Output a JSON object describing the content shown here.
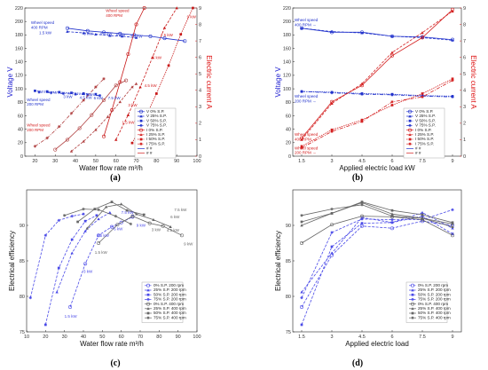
{
  "panels": [
    "(a)",
    "(b)",
    "(c)",
    "(d)"
  ],
  "chart_data": [
    {
      "id": "a",
      "type": "line",
      "xlabel": "Water flow rate m³/h",
      "ylabel": "Voltage V",
      "y2label": "Electric current A",
      "xlim": [
        15,
        100
      ],
      "xticks": [
        20,
        30,
        40,
        50,
        60,
        70,
        80,
        90,
        100
      ],
      "ylim": [
        0,
        220
      ],
      "yticks": [
        0,
        20,
        40,
        60,
        80,
        100,
        120,
        140,
        160,
        180,
        200,
        220
      ],
      "y2lim": [
        0,
        9
      ],
      "y2ticks": [
        0,
        1,
        2,
        3,
        4,
        5,
        6,
        7,
        8,
        9
      ],
      "annotations": {
        "ws400": [
          "Wheel speed",
          "400 RPM"
        ],
        "ws200": [
          "Wheel speed",
          "200 RPM"
        ],
        "rs400": [
          "Wheel speed",
          "400 RPM"
        ],
        "rs200": [
          "Wheel speed",
          "200 RPM"
        ]
      },
      "load_labels_hi": [
        "1.5 kW",
        "3 kW",
        "4.5 kW",
        "6 kW",
        "7.5 kW"
      ],
      "load_labels_lo": [
        "3 kW",
        "4.5 kW",
        "6 kW",
        "7.5 kW"
      ],
      "current_labels": [
        "9 kW",
        "7.5 kW",
        "6 kW",
        "4.5 kW",
        "3 kW",
        "1.5 kW"
      ],
      "voltage_series": [
        {
          "group": "400",
          "x": [
            36,
            46,
            54,
            62,
            69,
            77,
            84,
            94
          ],
          "y": [
            190,
            186,
            184,
            182,
            180,
            178,
            175,
            171
          ]
        },
        {
          "group": "400",
          "x": [
            36,
            44,
            50,
            57,
            63,
            70
          ],
          "y": [
            185,
            183,
            181,
            179,
            178,
            176
          ]
        },
        {
          "group": "200",
          "x": [
            20,
            26,
            32,
            38,
            44,
            50
          ],
          "y": [
            97,
            96,
            95,
            94,
            93,
            92
          ]
        },
        {
          "group": "200",
          "x": [
            22,
            28,
            34,
            40,
            46,
            52
          ],
          "y": [
            95,
            94,
            93,
            92,
            91,
            90
          ]
        }
      ],
      "current_series": [
        {
          "group": "400",
          "x": [
            54,
            58,
            62,
            66,
            70,
            74
          ],
          "y": [
            1.2,
            2.8,
            4.5,
            6.2,
            8.0,
            9.0
          ]
        },
        {
          "group": "400",
          "x": [
            60,
            66,
            72,
            78,
            84,
            90
          ],
          "y": [
            1.0,
            2.5,
            4.2,
            6.0,
            7.8,
            9.0
          ]
        },
        {
          "group": "400",
          "x": [
            68,
            74,
            80,
            86,
            92,
            98
          ],
          "y": [
            0.8,
            2.2,
            3.8,
            5.5,
            7.4,
            9.0
          ]
        },
        {
          "group": "200",
          "x": [
            20,
            26,
            32,
            38,
            44,
            50,
            54
          ],
          "y": [
            0.6,
            1.1,
            1.8,
            2.6,
            3.4,
            4.2,
            4.7
          ]
        },
        {
          "group": "200",
          "x": [
            30,
            36,
            42,
            48,
            54,
            60,
            65
          ],
          "y": [
            0.4,
            1.0,
            1.7,
            2.5,
            3.4,
            4.3,
            4.6
          ]
        },
        {
          "group": "200",
          "x": [
            38,
            44,
            50,
            56,
            62,
            68,
            70
          ],
          "y": [
            0.3,
            0.9,
            1.6,
            2.4,
            3.3,
            4.2,
            4.4
          ]
        }
      ],
      "legend": [
        "V 0% S.P.",
        "V 25% S.P.",
        "V 50% S.P.",
        "V 75% S.P.",
        "I 0% S.P.",
        "I 25% S.P.",
        "I 50% S.P.",
        "I 75% S.P."
      ],
      "legend_extra": [
        "# #",
        "# #"
      ]
    },
    {
      "id": "b",
      "type": "line",
      "xlabel": "Applied electric load kW",
      "ylabel": "Voltage V",
      "y2label": "Electric current A",
      "categories": [
        "1.5",
        "3",
        "4.5",
        "6",
        "7.5",
        "9"
      ],
      "ylim": [
        0,
        220
      ],
      "yticks": [
        0,
        20,
        40,
        60,
        80,
        100,
        120,
        140,
        160,
        180,
        200,
        220
      ],
      "y2lim": [
        0,
        9
      ],
      "y2ticks": [
        0,
        1,
        2,
        3,
        4,
        5,
        6,
        7,
        8,
        9
      ],
      "annotations": {
        "ws400": [
          "Wheel speed",
          "400 RPM →"
        ],
        "ws200": [
          "Wheel speed",
          "200 RPM →"
        ],
        "rs400": [
          "Wheel speed",
          "400 RPM →"
        ],
        "rs200": [
          "Wheel speed",
          "200 RPM →"
        ]
      },
      "voltage_series": [
        {
          "group": "400",
          "values": [
            190,
            184,
            184,
            178,
            177,
            173
          ]
        },
        {
          "group": "400",
          "values": [
            190,
            185,
            183,
            178,
            176,
            172
          ]
        },
        {
          "group": "200",
          "values": [
            96,
            95,
            93,
            92,
            90,
            89
          ]
        },
        {
          "group": "200",
          "values": [
            96,
            94,
            92,
            91,
            89,
            88
          ]
        }
      ],
      "current_series": [
        {
          "group": "400",
          "values": [
            1.1,
            3.3,
            4.3,
            6.1,
            7.2,
            8.9
          ]
        },
        {
          "group": "400",
          "values": [
            1.0,
            3.2,
            4.4,
            6.3,
            7.5,
            8.8
          ]
        },
        {
          "group": "200",
          "values": [
            0.6,
            1.6,
            2.2,
            3.1,
            3.8,
            4.7
          ]
        },
        {
          "group": "200",
          "values": [
            0.5,
            1.5,
            2.1,
            3.3,
            3.6,
            4.6
          ]
        }
      ],
      "legend": [
        "V 0% S.P.",
        "V 25% S.P.",
        "V 50% S.P.",
        "V 75% S.P.",
        "I 0% S.P.",
        "I 25% S.P.",
        "I 50% S.P.",
        "I 75% S.P."
      ],
      "legend_extra": [
        "# #",
        "# #"
      ]
    },
    {
      "id": "c",
      "type": "line",
      "xlabel": "Water flow rate m³/h",
      "ylabel": "Electrical efficiency",
      "xlim": [
        10,
        100
      ],
      "xticks": [
        10,
        20,
        30,
        40,
        50,
        60,
        70,
        80,
        90,
        100
      ],
      "ylim": [
        75,
        95
      ],
      "yticks": [
        75,
        80,
        85,
        90
      ],
      "point_labels": [
        "1.5 kW",
        "3 kW",
        "4.5 kW",
        "6 kW",
        "7.5 kW",
        "9 kW"
      ],
      "series": [
        {
          "name": "0% S.P. 200 rpm",
          "group": "200",
          "x": [
            33,
            41,
            48,
            55,
            60,
            66
          ],
          "y": [
            78.5,
            84.6,
            88.6,
            89.8,
            90.4,
            91.2
          ]
        },
        {
          "name": "25% S.P. 200 rpm",
          "group": "200",
          "x": [
            26,
            34,
            41,
            48,
            54
          ],
          "y": [
            80.6,
            86.1,
            89.2,
            90.9,
            91.8
          ]
        },
        {
          "name": "50% S.P. 200 rpm",
          "group": "200",
          "x": [
            20,
            27,
            34,
            41,
            47
          ],
          "y": [
            76.0,
            84.0,
            88.0,
            90.6,
            91.4
          ]
        },
        {
          "name": "75% S.P. 200 rpm",
          "group": "200",
          "x": [
            12,
            20,
            27,
            34,
            40
          ],
          "y": [
            79.8,
            88.6,
            90.7,
            91.3,
            91.6
          ]
        },
        {
          "name": "0% S.P. 400 rpm",
          "group": "400",
          "x": [
            48,
            58,
            66,
            75,
            82,
            92
          ],
          "y": [
            87.5,
            90.1,
            91.3,
            90.3,
            89.9,
            88.6
          ]
        },
        {
          "name": "25% S.P. 400 rpm",
          "group": "400",
          "x": [
            42,
            52,
            60,
            68,
            77,
            86
          ],
          "y": [
            89.6,
            92.6,
            93.0,
            91.6,
            90.8,
            89.8
          ]
        },
        {
          "name": "50% S.P. 400 rpm",
          "group": "400",
          "x": [
            37,
            46,
            55,
            63,
            72
          ],
          "y": [
            90.5,
            92.3,
            93.3,
            92.1,
            91.5
          ]
        },
        {
          "name": "75% S.P. 400 rpm",
          "group": "400",
          "x": [
            30,
            40,
            48,
            57,
            65
          ],
          "y": [
            91.4,
            92.3,
            92.2,
            91.3,
            90.2
          ]
        }
      ]
    },
    {
      "id": "d",
      "type": "line",
      "xlabel": "Applied electric load",
      "ylabel": "Electrical efficiency",
      "categories": [
        "1.5",
        "3",
        "4.5",
        "6",
        "7.5",
        "9"
      ],
      "ylim": [
        75,
        95
      ],
      "yticks": [
        75,
        80,
        85,
        90
      ],
      "series": [
        {
          "name": "0% S.P. 200 rpm",
          "group": "200",
          "values": [
            78.5,
            85.8,
            89.9,
            89.6,
            90.6,
            90.0
          ]
        },
        {
          "name": "25% S.P. 200 rpm",
          "group": "200",
          "values": [
            80.6,
            86.1,
            91.1,
            90.4,
            91.8,
            89.6
          ]
        },
        {
          "name": "50% S.P. 200 rpm",
          "group": "200",
          "values": [
            76.0,
            87.0,
            90.3,
            90.4,
            91.3,
            88.8
          ]
        },
        {
          "name": "75% S.P. 200 rpm",
          "group": "200",
          "values": [
            79.8,
            89.0,
            90.9,
            90.8,
            90.8,
            92.2
          ]
        },
        {
          "name": "0% S.P. 400 rpm",
          "group": "400",
          "values": [
            87.5,
            90.1,
            91.3,
            91.2,
            90.8,
            88.6
          ]
        },
        {
          "name": "25% S.P. 400 rpm",
          "group": "400",
          "values": [
            90.0,
            91.7,
            93.2,
            91.6,
            91.0,
            89.8
          ]
        },
        {
          "name": "50% S.P. 400 rpm",
          "group": "400",
          "values": [
            90.5,
            91.7,
            93.3,
            92.1,
            91.5,
            90.4
          ]
        },
        {
          "name": "75% S.P. 400 rpm",
          "group": "400",
          "values": [
            91.4,
            92.3,
            92.9,
            91.3,
            91.0,
            90.2
          ]
        }
      ]
    }
  ],
  "colors": {
    "voltage": "#2233cc",
    "current": "#d42020",
    "eff200": "#4a4ae8",
    "eff400": "#666666",
    "axis": "#222222",
    "grid": "#eeeeee"
  }
}
